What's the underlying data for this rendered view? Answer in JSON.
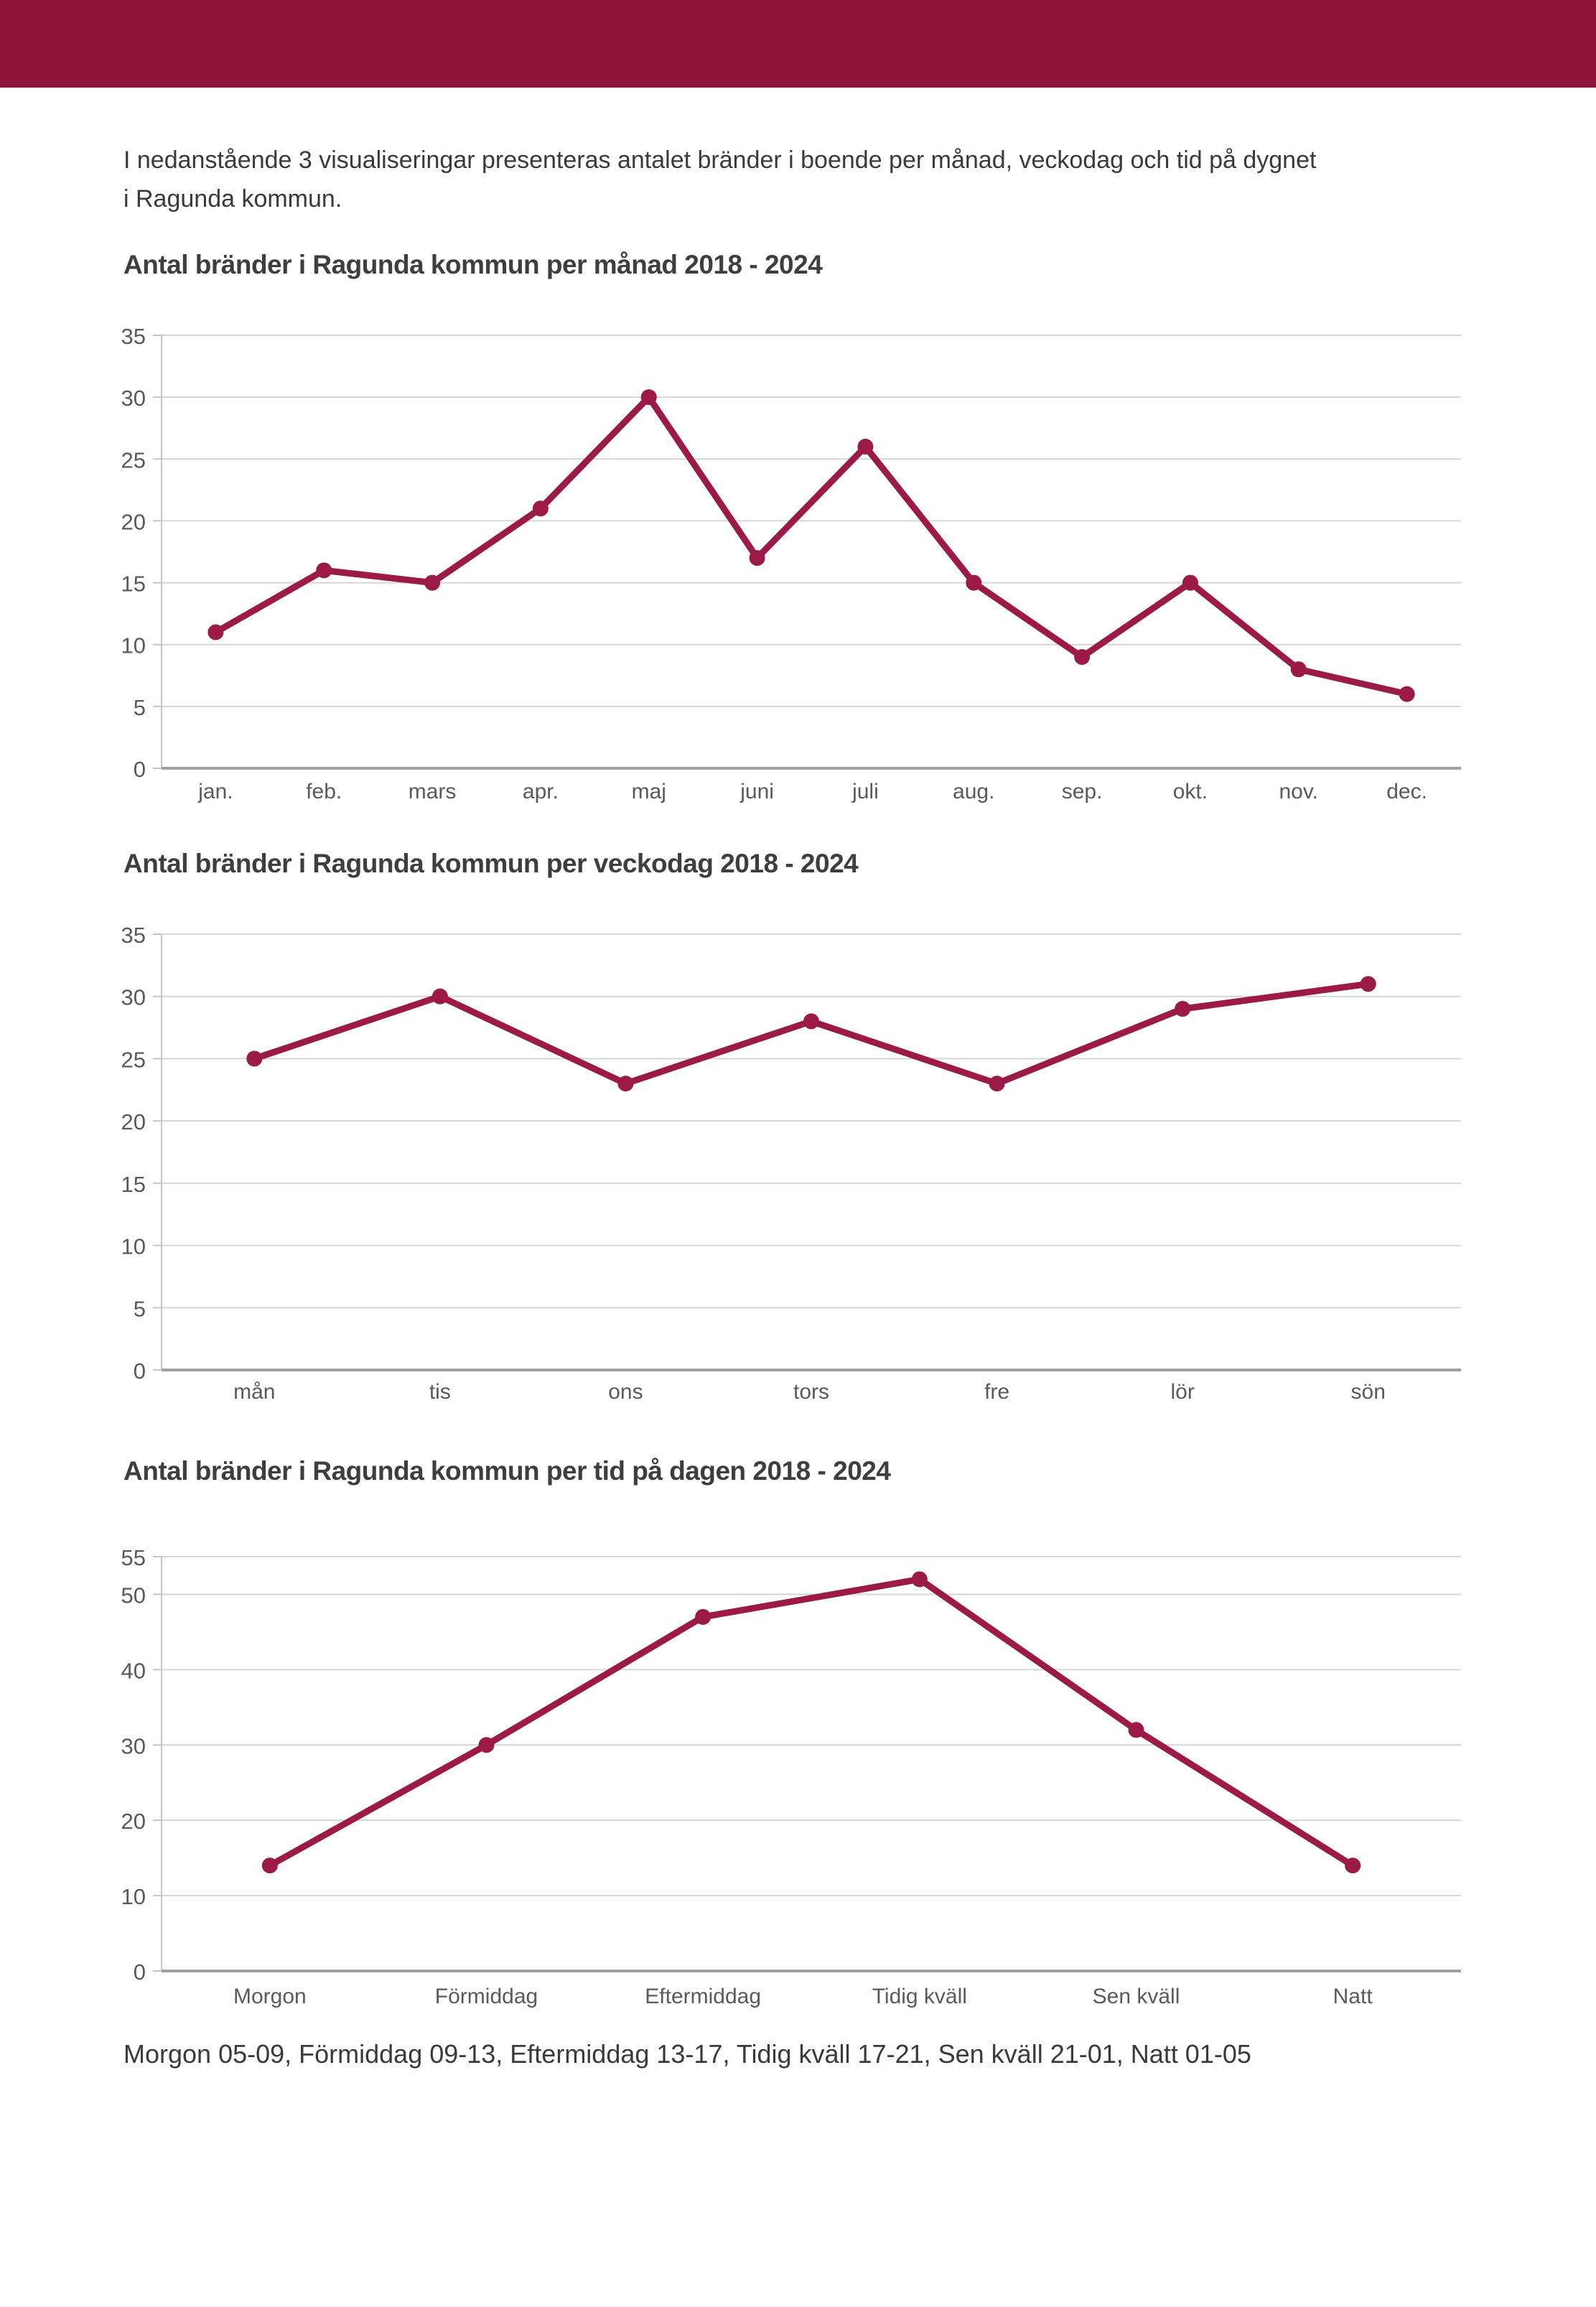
{
  "header": {
    "color": "#8E143C"
  },
  "intro": {
    "line1": "I nedanstående 3 visualiseringar presenteras antalet bränder i boende per månad, veckodag och tid på dygnet",
    "line2": "i Ragunda kommun."
  },
  "chart_data": [
    {
      "id": "per-manad",
      "type": "line",
      "title": "Antal bränder i Ragunda kommun per månad 2018 - 2024",
      "categories": [
        "jan.",
        "feb.",
        "mars",
        "apr.",
        "maj",
        "juni",
        "juli",
        "aug.",
        "sep.",
        "okt.",
        "nov.",
        "dec."
      ],
      "values": [
        11,
        16,
        15,
        21,
        30,
        17,
        26,
        15,
        9,
        15,
        8,
        6
      ],
      "xlabel": "",
      "ylabel": "",
      "ylim": [
        0,
        35
      ],
      "yticks": [
        0,
        5,
        10,
        15,
        20,
        25,
        30,
        35
      ],
      "grid": "horizontal",
      "legend": "none"
    },
    {
      "id": "per-veckodag",
      "type": "line",
      "title": "Antal bränder i Ragunda kommun per veckodag 2018 - 2024",
      "categories": [
        "mån",
        "tis",
        "ons",
        "tors",
        "fre",
        "lör",
        "sön"
      ],
      "values": [
        25,
        30,
        23,
        28,
        23,
        29,
        31
      ],
      "xlabel": "",
      "ylabel": "",
      "ylim": [
        0,
        35
      ],
      "yticks": [
        0,
        5,
        10,
        15,
        20,
        25,
        30,
        35
      ],
      "grid": "horizontal",
      "legend": "none"
    },
    {
      "id": "per-tid-pa-dagen",
      "type": "line",
      "title": "Antal bränder i Ragunda kommun per tid på dagen 2018 - 2024",
      "categories": [
        "Morgon",
        "Förmiddag",
        "Eftermiddag",
        "Tidig kväll",
        "Sen kväll",
        "Natt"
      ],
      "values": [
        14,
        30,
        47,
        52,
        32,
        14
      ],
      "xlabel": "",
      "ylabel": "",
      "ylim": [
        0,
        55
      ],
      "yticks": [
        0,
        10,
        20,
        30,
        40,
        50,
        55
      ],
      "grid": "horizontal",
      "legend": "none"
    }
  ],
  "footer": {
    "text": "Morgon 05-09, Förmiddag 09-13, Eftermiddag 13-17, Tidig kväll 17-21, Sen kväll 21-01, Natt 01-05"
  },
  "colors": {
    "accent": "#9B1B46",
    "header": "#8E143C",
    "grid": "#d6d6d6",
    "axis": "#c6c6c6",
    "baseline": "#a0a0a0",
    "title_text": "#3e3e3e",
    "body_text": "#3a3a3a",
    "tick_text": "#5a5a5a"
  }
}
